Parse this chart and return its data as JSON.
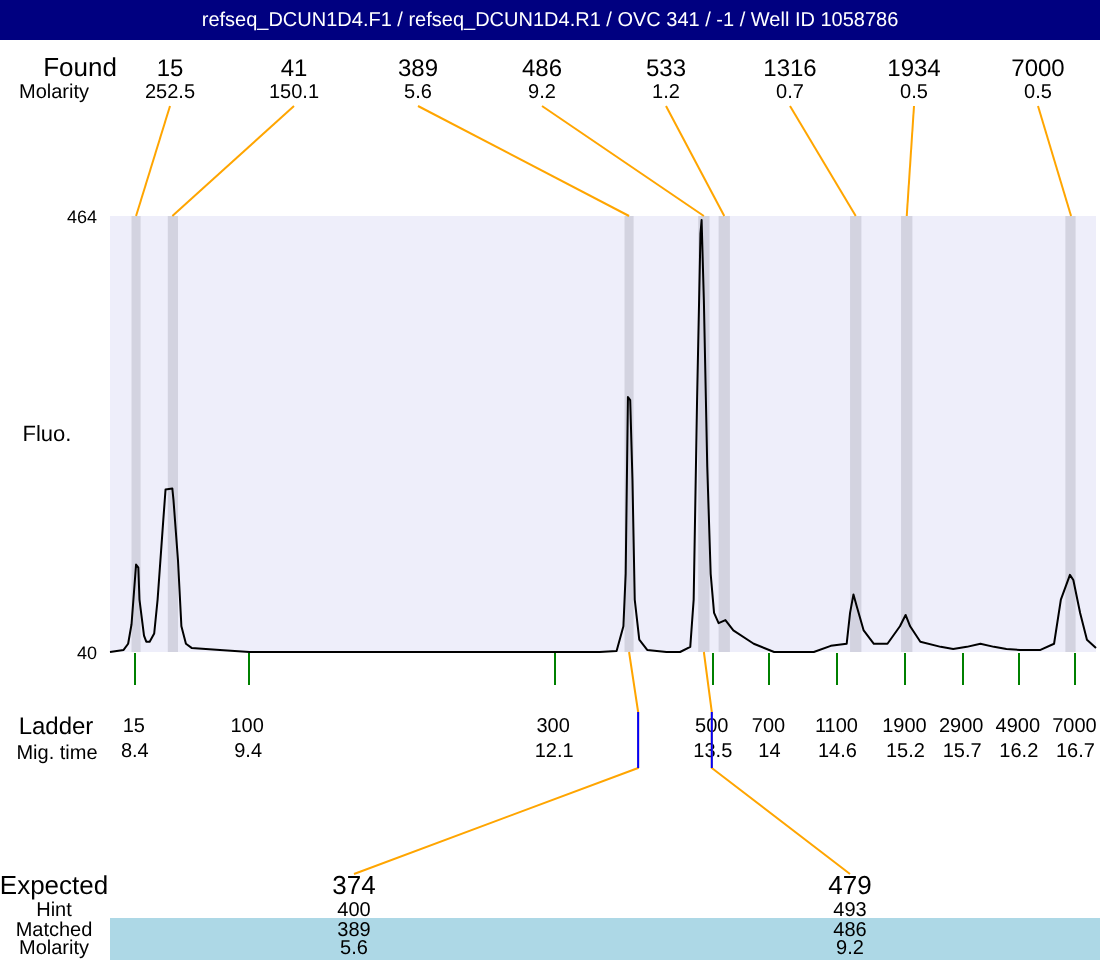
{
  "chart_data": {
    "type": "line",
    "title": "refseq_DCUN1D4.F1 / refseq_DCUN1D4.R1 / OVC 341 / -1 / Well ID 1058786",
    "ylabel": "Fluo.",
    "xlabel": "Mig. time",
    "x": [
      8.19,
      8.31,
      8.35,
      8.38,
      8.42,
      8.44,
      8.45,
      8.49,
      8.51,
      8.54,
      8.58,
      8.61,
      8.66,
      8.68,
      8.74,
      8.75,
      8.79,
      8.82,
      8.86,
      8.91,
      9.16,
      9.42,
      10.75,
      11.81,
      12.34,
      12.51,
      12.66,
      12.72,
      12.74,
      12.76,
      12.78,
      12.8,
      12.82,
      12.86,
      12.93,
      13.1,
      13.22,
      13.31,
      13.34,
      13.37,
      13.4,
      13.41,
      13.43,
      13.46,
      13.49,
      13.52,
      13.56,
      13.62,
      13.69,
      13.87,
      14.05,
      14.4,
      14.55,
      14.69,
      14.72,
      14.75,
      14.78,
      14.84,
      14.93,
      15.05,
      15.16,
      15.21,
      15.25,
      15.34,
      15.52,
      15.63,
      15.75,
      15.87,
      15.99,
      16.1,
      16.22,
      16.4,
      16.52,
      16.58,
      16.66,
      16.69,
      16.75,
      16.81,
      16.89
    ],
    "series": [
      {
        "color": "#000000",
        "values": [
          40,
          42,
          48,
          67,
          125,
          122,
          91,
          56,
          50,
          50,
          58,
          91,
          168,
          198,
          199,
          188,
          129,
          65,
          48,
          44,
          42,
          40,
          40,
          40,
          40,
          40,
          41,
          65,
          116,
          288,
          285,
          207,
          91,
          52,
          42,
          40,
          40,
          45,
          91,
          285,
          447,
          460,
          382,
          220,
          116,
          78,
          68,
          71,
          61,
          48,
          40,
          40,
          46,
          48,
          78,
          96,
          84,
          61,
          48,
          48,
          65,
          76,
          65,
          50,
          45,
          43,
          45,
          48,
          45,
          43,
          42,
          42,
          48,
          91,
          115,
          110,
          78,
          52,
          44
        ]
      }
    ],
    "xlim": [
      8.19,
      16.89
    ],
    "ylim": [
      40,
      464
    ],
    "yticks": [
      40,
      464
    ],
    "xticks": [
      8.4,
      9.4,
      12.1,
      13.5,
      14,
      14.6,
      15.2,
      15.7,
      16.2,
      16.7
    ],
    "bands": [
      {
        "axis": "x",
        "from": 8.38,
        "to": 8.46,
        "label": "15",
        "color": "#d3d3e0"
      },
      {
        "axis": "x",
        "from": 8.7,
        "to": 8.79,
        "label": "41",
        "color": "#d3d3e0"
      },
      {
        "axis": "x",
        "from": 12.73,
        "to": 12.81,
        "label": "389",
        "color": "#d3d3e0"
      },
      {
        "axis": "x",
        "from": 13.38,
        "to": 13.48,
        "label": "486",
        "color": "#d3d3e0"
      },
      {
        "axis": "x",
        "from": 13.56,
        "to": 13.66,
        "label": "533",
        "color": "#d3d3e0"
      },
      {
        "axis": "x",
        "from": 14.72,
        "to": 14.82,
        "label": "1316",
        "color": "#d3d3e0"
      },
      {
        "axis": "x",
        "from": 15.17,
        "to": 15.27,
        "label": "1934",
        "color": "#d3d3e0"
      },
      {
        "axis": "x",
        "from": 16.62,
        "to": 16.71,
        "label": "7000",
        "color": "#d3d3e0"
      }
    ],
    "annotations": [
      "Found",
      "Molarity",
      "Expected",
      "Hint",
      "Matched",
      "Molarity",
      "Ladder",
      "15",
      "100",
      "300",
      "500",
      "700",
      "1100",
      "1900",
      "2900",
      "4900",
      "7000",
      {
        "text": "252.5",
        "x": 8.42,
        "y": 464
      },
      {
        "text": "150.1",
        "x": 8.74,
        "y": 464
      },
      {
        "text": "5.6",
        "x": 12.77,
        "y": 464
      },
      {
        "text": "9.2",
        "x": 13.43,
        "y": 464
      },
      {
        "text": "1.2",
        "x": 13.61,
        "y": 464
      },
      {
        "text": "0.7",
        "x": 14.77,
        "y": 464
      },
      {
        "text": "0.5",
        "x": 15.22,
        "y": 464
      },
      {
        "text": "0.5",
        "x": 16.67,
        "y": 464
      },
      {
        "text": "374",
        "x": 12.85,
        "y": 40
      },
      "400",
      "389",
      "5.6",
      {
        "text": "479",
        "x": 13.5,
        "y": 40
      },
      "493",
      "486",
      "9.2"
    ],
    "grid": false
  }
}
